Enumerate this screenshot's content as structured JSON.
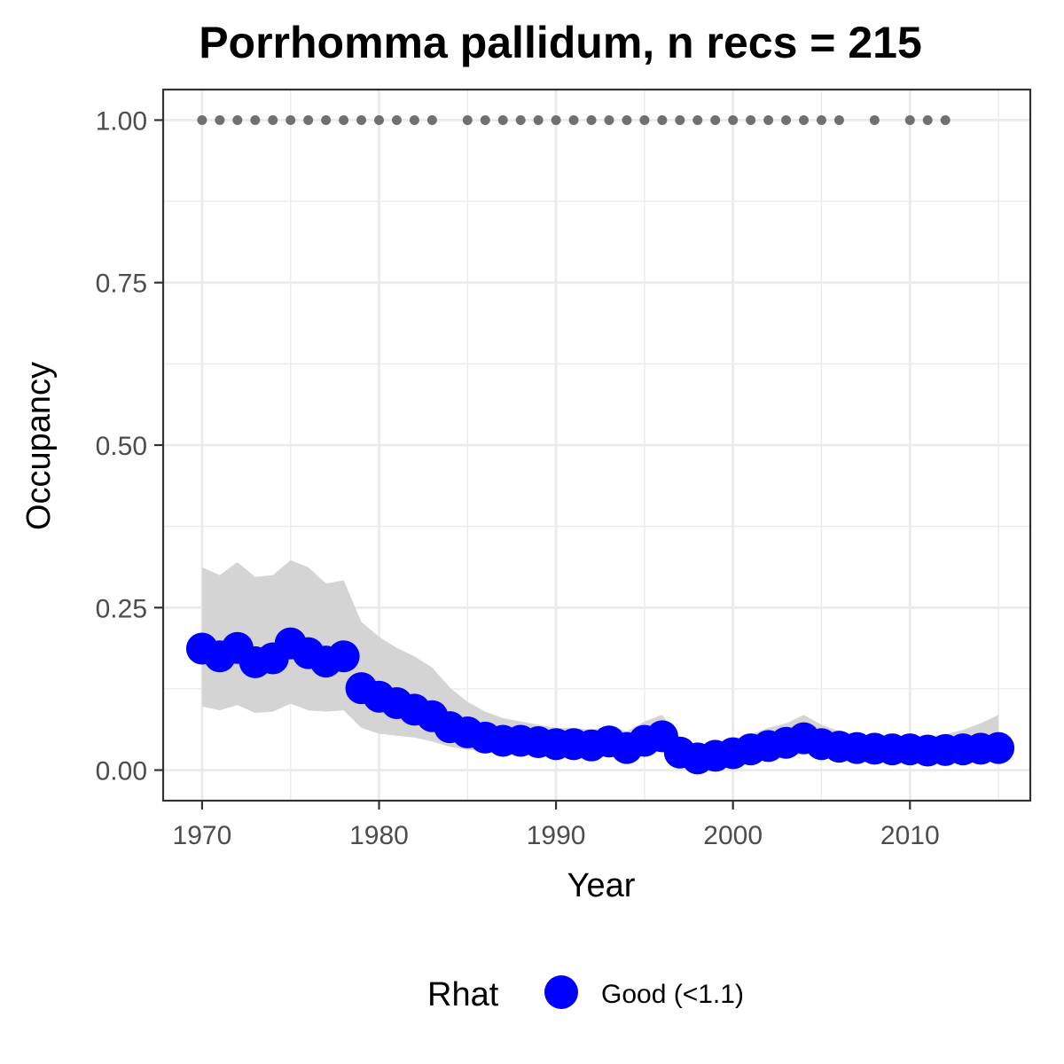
{
  "chart_data": {
    "type": "line",
    "title": "Porrhomma pallidum, n recs = 215",
    "xlabel": "Year",
    "ylabel": "Occupancy",
    "xlim": [
      1967.8,
      2016.8
    ],
    "ylim": [
      -0.047,
      1.047
    ],
    "x_ticks": [
      1970,
      1980,
      1990,
      2000,
      2010
    ],
    "x_tick_labels": [
      "1970",
      "1980",
      "1990",
      "2000",
      "2010"
    ],
    "y_ticks": [
      0,
      0.25,
      0.5,
      0.75,
      1.0
    ],
    "y_tick_labels": [
      "0.00",
      "0.25",
      "0.50",
      "0.75",
      "1.00"
    ],
    "grid": true,
    "colors": {
      "series": "#0000ff",
      "ribbon": "#d4d4d4",
      "record_points": "#707070",
      "grid": "#ebebeb",
      "panel_border": "#333333"
    },
    "series": [
      {
        "name": "Good (<1.1)",
        "x": [
          1970,
          1971,
          1972,
          1973,
          1974,
          1975,
          1976,
          1977,
          1978,
          1979,
          1980,
          1981,
          1982,
          1983,
          1984,
          1985,
          1986,
          1987,
          1988,
          1989,
          1990,
          1991,
          1992,
          1993,
          1994,
          1995,
          1996,
          1997,
          1998,
          1999,
          2000,
          2001,
          2002,
          2003,
          2004,
          2005,
          2006,
          2007,
          2008,
          2009,
          2010,
          2011,
          2012,
          2013,
          2014,
          2015
        ],
        "values": [
          0.187,
          0.175,
          0.188,
          0.166,
          0.172,
          0.195,
          0.18,
          0.167,
          0.175,
          0.126,
          0.113,
          0.103,
          0.093,
          0.083,
          0.066,
          0.058,
          0.05,
          0.045,
          0.045,
          0.043,
          0.04,
          0.04,
          0.038,
          0.044,
          0.034,
          0.045,
          0.052,
          0.027,
          0.018,
          0.022,
          0.026,
          0.032,
          0.037,
          0.042,
          0.049,
          0.04,
          0.036,
          0.034,
          0.033,
          0.032,
          0.032,
          0.03,
          0.031,
          0.032,
          0.033,
          0.034
        ],
        "lower": [
          0.098,
          0.092,
          0.1,
          0.088,
          0.09,
          0.102,
          0.092,
          0.09,
          0.092,
          0.065,
          0.056,
          0.053,
          0.05,
          0.044,
          0.036,
          0.031,
          0.03,
          0.028,
          0.027,
          0.026,
          0.026,
          0.025,
          0.025,
          0.026,
          0.022,
          0.026,
          0.028,
          0.013,
          0.009,
          0.011,
          0.013,
          0.016,
          0.019,
          0.022,
          0.025,
          0.021,
          0.019,
          0.018,
          0.018,
          0.017,
          0.017,
          0.016,
          0.017,
          0.017,
          0.017,
          0.018
        ],
        "upper": [
          0.312,
          0.3,
          0.32,
          0.297,
          0.3,
          0.323,
          0.312,
          0.287,
          0.292,
          0.228,
          0.205,
          0.188,
          0.175,
          0.158,
          0.127,
          0.105,
          0.09,
          0.08,
          0.075,
          0.07,
          0.065,
          0.065,
          0.062,
          0.068,
          0.06,
          0.075,
          0.085,
          0.05,
          0.035,
          0.038,
          0.045,
          0.055,
          0.065,
          0.072,
          0.085,
          0.07,
          0.06,
          0.055,
          0.053,
          0.052,
          0.052,
          0.052,
          0.055,
          0.062,
          0.072,
          0.085
        ]
      }
    ],
    "record_years": [
      1970,
      1971,
      1972,
      1973,
      1974,
      1975,
      1976,
      1977,
      1978,
      1979,
      1980,
      1981,
      1982,
      1983,
      1985,
      1986,
      1987,
      1988,
      1989,
      1990,
      1991,
      1992,
      1993,
      1994,
      1995,
      1996,
      1997,
      1998,
      1999,
      2000,
      2001,
      2002,
      2003,
      2004,
      2005,
      2006,
      2008,
      2010,
      2011,
      2012
    ],
    "record_value": 1.0,
    "legend": {
      "title": "Rhat",
      "placement": "bottom",
      "entries": [
        {
          "label": "Good (<1.1)",
          "color": "#0000ff"
        }
      ]
    }
  }
}
